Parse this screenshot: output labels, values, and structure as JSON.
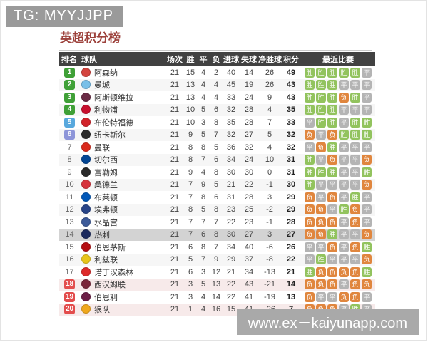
{
  "watermark_top": "TG: MYYJJPP",
  "watermark_bottom": "www.ex－kaiyunapp.com",
  "title": "英超积分榜",
  "table": {
    "headers": [
      "排名",
      "球队",
      "场次",
      "胜",
      "平",
      "负",
      "进球",
      "失球",
      "净胜球",
      "积分",
      "最近比赛"
    ],
    "form_labels": {
      "win": "胜",
      "draw": "平",
      "loss": "负"
    },
    "form_colors": {
      "win": "#92c35e",
      "draw": "#b4b4b4",
      "loss": "#e0863e"
    },
    "rank_badge_colors": {
      "green": "#3fa037",
      "blue": "#58a8dd",
      "purple": "#8d95d9",
      "red": "#e34d4d"
    },
    "rows": [
      {
        "rank": 1,
        "rank_badge": "green",
        "team": "阿森纳",
        "crest_color": "#d4443e",
        "played": 21,
        "win": 15,
        "draw": 4,
        "loss": 2,
        "gf": 40,
        "ga": 14,
        "gd": 26,
        "pts": 49,
        "form": [
          "胜",
          "胜",
          "胜",
          "胜",
          "胜",
          "平"
        ],
        "highlight": false
      },
      {
        "rank": 2,
        "rank_badge": "green",
        "team": "曼城",
        "crest_color": "#79bfe8",
        "played": 21,
        "win": 13,
        "draw": 4,
        "loss": 4,
        "gf": 45,
        "ga": 19,
        "gd": 26,
        "pts": 43,
        "form": [
          "胜",
          "胜",
          "胜",
          "平",
          "平",
          "平"
        ],
        "highlight": false
      },
      {
        "rank": 3,
        "rank_badge": "green",
        "team": "阿斯顿维拉",
        "crest_color": "#6a2b45",
        "played": 21,
        "win": 13,
        "draw": 4,
        "loss": 4,
        "gf": 33,
        "ga": 24,
        "gd": 9,
        "pts": 43,
        "form": [
          "胜",
          "胜",
          "胜",
          "负",
          "胜",
          "平"
        ],
        "highlight": false
      },
      {
        "rank": 4,
        "rank_badge": "green",
        "team": "利物浦",
        "crest_color": "#c8102e",
        "played": 21,
        "win": 10,
        "draw": 5,
        "loss": 6,
        "gf": 32,
        "ga": 28,
        "gd": 4,
        "pts": 35,
        "form": [
          "胜",
          "胜",
          "胜",
          "平",
          "平",
          "平"
        ],
        "highlight": false
      },
      {
        "rank": 5,
        "rank_badge": "blue",
        "team": "布伦特福德",
        "crest_color": "#d2232a",
        "played": 21,
        "win": 10,
        "draw": 3,
        "loss": 8,
        "gf": 35,
        "ga": 28,
        "gd": 7,
        "pts": 33,
        "form": [
          "平",
          "胜",
          "胜",
          "平",
          "胜",
          "胜"
        ],
        "highlight": false
      },
      {
        "rank": 6,
        "rank_badge": "purple",
        "team": "纽卡斯尔",
        "crest_color": "#2b2b2b",
        "played": 21,
        "win": 9,
        "draw": 5,
        "loss": 7,
        "gf": 32,
        "ga": 27,
        "gd": 5,
        "pts": 32,
        "form": [
          "负",
          "平",
          "负",
          "胜",
          "胜",
          "胜"
        ],
        "highlight": false
      },
      {
        "rank": 7,
        "rank_badge": "none",
        "team": "曼联",
        "crest_color": "#da291c",
        "played": 21,
        "win": 8,
        "draw": 8,
        "loss": 5,
        "gf": 36,
        "ga": 32,
        "gd": 4,
        "pts": 32,
        "form": [
          "平",
          "负",
          "胜",
          "平",
          "平",
          "平"
        ],
        "highlight": false
      },
      {
        "rank": 8,
        "rank_badge": "none",
        "team": "切尔西",
        "crest_color": "#034694",
        "played": 21,
        "win": 8,
        "draw": 7,
        "loss": 6,
        "gf": 34,
        "ga": 24,
        "gd": 10,
        "pts": 31,
        "form": [
          "胜",
          "平",
          "负",
          "平",
          "平",
          "负"
        ],
        "highlight": false
      },
      {
        "rank": 9,
        "rank_badge": "none",
        "team": "富勒姆",
        "crest_color": "#2a2a2a",
        "played": 21,
        "win": 9,
        "draw": 4,
        "loss": 8,
        "gf": 30,
        "ga": 30,
        "gd": 0,
        "pts": 31,
        "form": [
          "胜",
          "胜",
          "胜",
          "平",
          "平",
          "胜"
        ],
        "highlight": false
      },
      {
        "rank": 10,
        "rank_badge": "none",
        "team": "桑德兰",
        "crest_color": "#d6323c",
        "played": 21,
        "win": 7,
        "draw": 9,
        "loss": 5,
        "gf": 21,
        "ga": 22,
        "gd": -1,
        "pts": 30,
        "form": [
          "胜",
          "平",
          "平",
          "平",
          "平",
          "负"
        ],
        "highlight": false
      },
      {
        "rank": 11,
        "rank_badge": "none",
        "team": "布莱顿",
        "crest_color": "#0057b8",
        "played": 21,
        "win": 7,
        "draw": 8,
        "loss": 6,
        "gf": 31,
        "ga": 28,
        "gd": 3,
        "pts": 29,
        "form": [
          "负",
          "平",
          "负",
          "平",
          "胜",
          "平"
        ],
        "highlight": false
      },
      {
        "rank": 12,
        "rank_badge": "none",
        "team": "埃弗顿",
        "crest_color": "#274488",
        "played": 21,
        "win": 8,
        "draw": 5,
        "loss": 8,
        "gf": 23,
        "ga": 25,
        "gd": -2,
        "pts": 29,
        "form": [
          "负",
          "负",
          "平",
          "胜",
          "负",
          "平"
        ],
        "highlight": false
      },
      {
        "rank": 13,
        "rank_badge": "none",
        "team": "水晶宫",
        "crest_color": "#3c5a99",
        "played": 21,
        "win": 7,
        "draw": 7,
        "loss": 7,
        "gf": 22,
        "ga": 23,
        "gd": -1,
        "pts": 28,
        "form": [
          "负",
          "负",
          "负",
          "平",
          "负",
          "平"
        ],
        "highlight": false
      },
      {
        "rank": 14,
        "rank_badge": "none",
        "team": "热刺",
        "crest_color": "#1b2a5e",
        "played": 21,
        "win": 7,
        "draw": 6,
        "loss": 8,
        "gf": 30,
        "ga": 27,
        "gd": 3,
        "pts": 27,
        "form": [
          "负",
          "负",
          "胜",
          "平",
          "平",
          "负"
        ],
        "highlight": true
      },
      {
        "rank": 15,
        "rank_badge": "none",
        "team": "伯恩茅斯",
        "crest_color": "#b50e12",
        "played": 21,
        "win": 6,
        "draw": 8,
        "loss": 7,
        "gf": 34,
        "ga": 40,
        "gd": -6,
        "pts": 26,
        "form": [
          "平",
          "平",
          "负",
          "平",
          "负",
          "胜"
        ],
        "highlight": false
      },
      {
        "rank": 16,
        "rank_badge": "none",
        "team": "利兹联",
        "crest_color": "#e8c51a",
        "played": 21,
        "win": 5,
        "draw": 7,
        "loss": 9,
        "gf": 29,
        "ga": 37,
        "gd": -8,
        "pts": 22,
        "form": [
          "平",
          "胜",
          "平",
          "平",
          "平",
          "负"
        ],
        "highlight": false
      },
      {
        "rank": 17,
        "rank_badge": "none",
        "team": "诺丁汉森林",
        "crest_color": "#dd2a2a",
        "played": 21,
        "win": 6,
        "draw": 3,
        "loss": 12,
        "gf": 21,
        "ga": 34,
        "gd": -13,
        "pts": 21,
        "form": [
          "胜",
          "负",
          "负",
          "负",
          "负",
          "胜"
        ],
        "highlight": false
      },
      {
        "rank": 18,
        "rank_badge": "red",
        "team": "西汉姆联",
        "crest_color": "#7a263a",
        "played": 21,
        "win": 3,
        "draw": 5,
        "loss": 13,
        "gf": 22,
        "ga": 43,
        "gd": -21,
        "pts": 14,
        "form": [
          "负",
          "负",
          "负",
          "平",
          "负",
          "负"
        ],
        "highlight": false
      },
      {
        "rank": 19,
        "rank_badge": "red",
        "team": "伯恩利",
        "crest_color": "#6c1d45",
        "played": 21,
        "win": 3,
        "draw": 4,
        "loss": 14,
        "gf": 22,
        "ga": 41,
        "gd": -19,
        "pts": 13,
        "form": [
          "负",
          "平",
          "平",
          "负",
          "负",
          "平"
        ],
        "highlight": false
      },
      {
        "rank": 20,
        "rank_badge": "red",
        "team": "狼队",
        "crest_color": "#f0a81d",
        "played": 21,
        "win": 1,
        "draw": 4,
        "loss": 16,
        "gf": 15,
        "ga": 41,
        "gd": -26,
        "pts": 7,
        "form": [
          "负",
          "负",
          "负",
          "平",
          "胜",
          "平"
        ],
        "highlight": false
      }
    ]
  }
}
